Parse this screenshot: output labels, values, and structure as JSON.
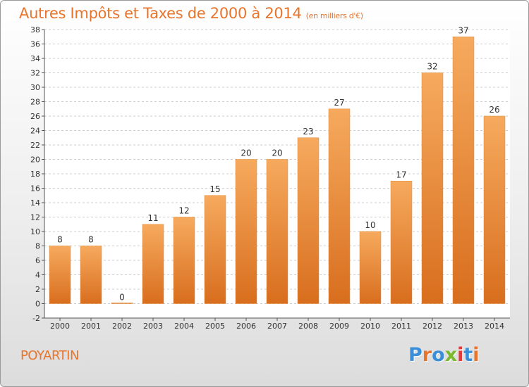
{
  "title": {
    "main": "Autres Impôts et Taxes de 2000 à 2014",
    "unit": "(en milliers d'€)"
  },
  "place_name": "POYARTIN",
  "logo": {
    "text": "Proxiti",
    "letter_colors": [
      "#3a8fd8",
      "#e8742c",
      "#3a8fd8",
      "#7ab82e",
      "#e23b3b",
      "#3a8fd8",
      "#e8742c"
    ]
  },
  "colors": {
    "title": "#e8742c",
    "bar_top": "#f6aa5e",
    "bar_bottom": "#d86e1e",
    "axis": "#555555",
    "grid": "#cccccc",
    "plot_bg": "#ffffff"
  },
  "chart_data": {
    "type": "bar",
    "categories": [
      "2000",
      "2001",
      "2002",
      "2003",
      "2004",
      "2005",
      "2006",
      "2007",
      "2008",
      "2009",
      "2010",
      "2011",
      "2012",
      "2013",
      "2014"
    ],
    "values": [
      8,
      8,
      0,
      11,
      12,
      15,
      20,
      20,
      23,
      27,
      10,
      17,
      32,
      37,
      26
    ],
    "data_labels": [
      "8",
      "8",
      "0",
      "11",
      "12",
      "15",
      "20",
      "20",
      "23",
      "27",
      "10",
      "17",
      "32",
      "37",
      "26"
    ],
    "ylim": [
      -2,
      38
    ],
    "y_ticks": [
      -2,
      0,
      2,
      4,
      6,
      8,
      10,
      12,
      14,
      16,
      18,
      20,
      22,
      24,
      26,
      28,
      30,
      32,
      34,
      36,
      38
    ],
    "grid": "horizontal dashed",
    "xlabel": "",
    "ylabel": ""
  }
}
